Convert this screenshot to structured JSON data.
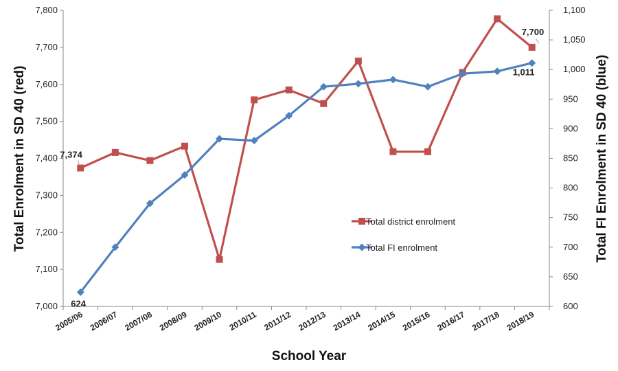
{
  "chart_data": {
    "type": "line",
    "title": "",
    "xlabel": "School Year",
    "ylabel_left": "Total Enrolment in SD 40 (red)",
    "ylabel_right": "Total FI Enrolment in SD 40 (blue)",
    "categories": [
      "2005/06",
      "2006/07",
      "2007/08",
      "2008/09",
      "2009/10",
      "2010/11",
      "2011/12",
      "2012/13",
      "2013/14",
      "2014/15",
      "2015/16",
      "2016/17",
      "2017/18",
      "2018/19"
    ],
    "left_axis": {
      "min": 7000,
      "max": 7800,
      "step": 100,
      "ticks": [
        "7,000",
        "7,100",
        "7,200",
        "7,300",
        "7,400",
        "7,500",
        "7,600",
        "7,700",
        "7,800"
      ]
    },
    "right_axis": {
      "min": 600,
      "max": 1100,
      "step": 50,
      "ticks": [
        "600",
        "650",
        "700",
        "750",
        "800",
        "850",
        "900",
        "950",
        "1,000",
        "1,050",
        "1,100"
      ]
    },
    "series": [
      {
        "name": "Total district enrolment",
        "axis": "left",
        "color": "#c0504d",
        "marker": "square",
        "values": [
          7374,
          7416,
          7394,
          7433,
          7127,
          7558,
          7585,
          7548,
          7663,
          7418,
          7418,
          7632,
          7777,
          7700
        ]
      },
      {
        "name": "Total FI enrolment",
        "axis": "right",
        "color": "#4f81bd",
        "marker": "diamond",
        "values": [
          624,
          700,
          774,
          822,
          883,
          880,
          922,
          971,
          976,
          983,
          971,
          993,
          997,
          1011
        ]
      }
    ],
    "data_labels": [
      {
        "series": 0,
        "index": 0,
        "text": "7,374"
      },
      {
        "series": 0,
        "index": 13,
        "text": "7,700"
      },
      {
        "series": 1,
        "index": 0,
        "text": "624"
      },
      {
        "series": 1,
        "index": 13,
        "text": "1,011"
      }
    ],
    "legend": {
      "position": "center-right"
    },
    "grid": false
  }
}
